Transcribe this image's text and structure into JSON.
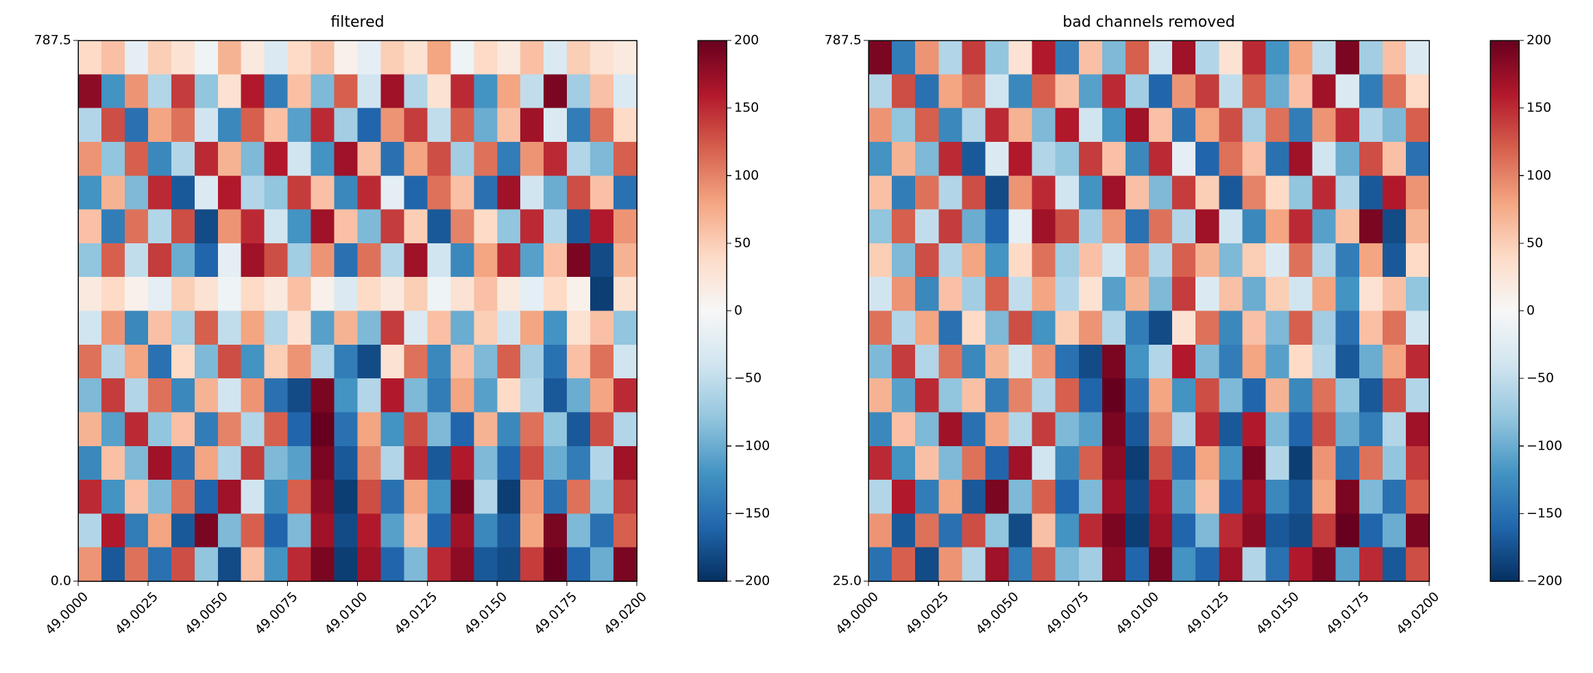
{
  "chart_data": [
    {
      "type": "heatmap",
      "title": "filtered",
      "xlim": [
        49.0,
        49.02
      ],
      "xticks": [
        {
          "value": 49.0,
          "label": "49.0000"
        },
        {
          "value": 49.0025,
          "label": "49.0025"
        },
        {
          "value": 49.005,
          "label": "49.0050"
        },
        {
          "value": 49.0075,
          "label": "49.0075"
        },
        {
          "value": 49.01,
          "label": "49.0100"
        },
        {
          "value": 49.0125,
          "label": "49.0125"
        },
        {
          "value": 49.015,
          "label": "49.0150"
        },
        {
          "value": 49.0175,
          "label": "49.0175"
        },
        {
          "value": 49.02,
          "label": "49.0200"
        }
      ],
      "ylim": [
        0,
        787.5
      ],
      "yticks": [
        {
          "value": 0,
          "label": "0.0"
        },
        787.5
      ],
      "colormap": [
        "#053061",
        "#2166ac",
        "#4393c3",
        "#92c5de",
        "#d1e5f0",
        "#f7f7f7",
        "#fddbc7",
        "#f4a582",
        "#d6604d",
        "#b2182b",
        "#67001f"
      ],
      "clim": [
        -200,
        200
      ],
      "cticks": [
        {
          "value": -200,
          "label": "−200"
        },
        {
          "value": -150,
          "label": "−150"
        },
        {
          "value": -100,
          "label": "−100"
        },
        {
          "value": -50,
          "label": "−50"
        },
        0,
        50,
        100,
        150,
        200
      ],
      "z": [
        [
          40,
          60,
          -20,
          50,
          30,
          -10,
          70,
          20,
          -30,
          40,
          60,
          10,
          -20,
          50,
          30,
          80,
          -10,
          40,
          20,
          60,
          -30,
          50,
          30,
          20
        ],
        [
          180,
          -120,
          90,
          -60,
          140,
          -80,
          30,
          160,
          -140,
          60,
          -90,
          120,
          -40,
          170,
          -60,
          30,
          150,
          -120,
          80,
          -50,
          190,
          -70,
          60,
          -30
        ],
        [
          -60,
          130,
          -150,
          80,
          110,
          -40,
          -130,
          120,
          60,
          -110,
          150,
          -70,
          -160,
          90,
          140,
          -50,
          120,
          -100,
          60,
          170,
          -30,
          -140,
          110,
          40
        ],
        [
          90,
          -80,
          120,
          -130,
          -60,
          150,
          70,
          -90,
          160,
          -40,
          -120,
          170,
          60,
          -150,
          80,
          130,
          -70,
          110,
          -140,
          90,
          150,
          -60,
          -90,
          120
        ],
        [
          -120,
          70,
          -90,
          150,
          -170,
          -30,
          160,
          -60,
          -80,
          140,
          60,
          -130,
          150,
          -20,
          -160,
          110,
          60,
          -150,
          170,
          -40,
          -100,
          130,
          60,
          -150
        ],
        [
          60,
          -140,
          110,
          -60,
          130,
          -180,
          90,
          150,
          -40,
          -120,
          170,
          60,
          -90,
          140,
          50,
          -170,
          100,
          40,
          -80,
          150,
          -60,
          -170,
          160,
          90
        ],
        [
          -80,
          120,
          -50,
          140,
          -100,
          -160,
          -20,
          170,
          130,
          -70,
          90,
          -150,
          110,
          -60,
          170,
          -40,
          -130,
          80,
          150,
          -110,
          60,
          190,
          -180,
          70
        ],
        [
          20,
          40,
          10,
          -20,
          50,
          30,
          -10,
          40,
          20,
          60,
          10,
          -30,
          40,
          20,
          50,
          -10,
          30,
          60,
          20,
          -20,
          40,
          10,
          -190,
          30
        ],
        [
          -40,
          90,
          -130,
          60,
          -70,
          120,
          -50,
          80,
          -60,
          30,
          -110,
          70,
          -90,
          140,
          -30,
          60,
          -100,
          50,
          -40,
          80,
          -120,
          30,
          60,
          -80
        ],
        [
          110,
          -60,
          80,
          -150,
          40,
          -90,
          130,
          -120,
          50,
          90,
          -60,
          -140,
          -180,
          30,
          110,
          -130,
          60,
          -90,
          120,
          -70,
          -150,
          60,
          110,
          -40
        ],
        [
          -90,
          140,
          -60,
          110,
          -130,
          70,
          -40,
          90,
          -150,
          -180,
          190,
          -120,
          -60,
          160,
          -90,
          -140,
          80,
          -110,
          40,
          -60,
          -170,
          -100,
          80,
          150
        ],
        [
          70,
          -110,
          150,
          -80,
          60,
          -140,
          100,
          -60,
          120,
          -160,
          200,
          -150,
          80,
          -120,
          130,
          -90,
          -160,
          70,
          -130,
          110,
          -80,
          -170,
          130,
          -60
        ],
        [
          -130,
          60,
          -90,
          170,
          -150,
          80,
          -60,
          140,
          -90,
          -110,
          190,
          -170,
          100,
          -60,
          150,
          -170,
          160,
          -90,
          -160,
          130,
          -100,
          -140,
          -60,
          170
        ],
        [
          150,
          -120,
          60,
          -90,
          110,
          -160,
          170,
          -40,
          -130,
          120,
          180,
          -190,
          130,
          -150,
          80,
          -120,
          190,
          -60,
          -190,
          90,
          -150,
          110,
          -80,
          140
        ],
        [
          -60,
          160,
          -140,
          80,
          -170,
          190,
          -90,
          120,
          -160,
          -90,
          170,
          -180,
          160,
          -110,
          60,
          -160,
          170,
          -130,
          -170,
          80,
          190,
          -90,
          -150,
          120
        ],
        [
          90,
          -170,
          110,
          -150,
          130,
          -80,
          -180,
          60,
          -120,
          150,
          190,
          -190,
          170,
          -160,
          -90,
          150,
          180,
          -170,
          -180,
          140,
          200,
          -160,
          -100,
          190
        ]
      ]
    },
    {
      "type": "heatmap",
      "title": "bad channels removed",
      "xlim": [
        49.0,
        49.02
      ],
      "xticks": [
        {
          "value": 49.0,
          "label": "49.0000"
        },
        {
          "value": 49.0025,
          "label": "49.0025"
        },
        {
          "value": 49.005,
          "label": "49.0050"
        },
        {
          "value": 49.0075,
          "label": "49.0075"
        },
        {
          "value": 49.01,
          "label": "49.0100"
        },
        {
          "value": 49.0125,
          "label": "49.0125"
        },
        {
          "value": 49.015,
          "label": "49.0150"
        },
        {
          "value": 49.0175,
          "label": "49.0175"
        },
        {
          "value": 49.02,
          "label": "49.0200"
        }
      ],
      "ylim": [
        25,
        787.5
      ],
      "yticks": [
        {
          "value": 25,
          "label": "25.0"
        },
        787.5
      ],
      "colormap": [
        "#053061",
        "#2166ac",
        "#4393c3",
        "#92c5de",
        "#d1e5f0",
        "#f7f7f7",
        "#fddbc7",
        "#f4a582",
        "#d6604d",
        "#b2182b",
        "#67001f"
      ],
      "clim": [
        -200,
        200
      ],
      "cticks": [
        {
          "value": -200,
          "label": "−200"
        },
        {
          "value": -150,
          "label": "−150"
        },
        {
          "value": -100,
          "label": "−100"
        },
        {
          "value": -50,
          "label": "−50"
        },
        0,
        50,
        100,
        150,
        200
      ],
      "z": [
        [
          190,
          -140,
          90,
          -60,
          140,
          -80,
          30,
          160,
          -140,
          60,
          -90,
          120,
          -40,
          170,
          -60,
          30,
          150,
          -120,
          80,
          -50,
          190,
          -70,
          60,
          -30
        ],
        [
          -60,
          130,
          -150,
          80,
          110,
          -40,
          -130,
          120,
          60,
          -110,
          150,
          -70,
          -160,
          90,
          140,
          -50,
          120,
          -100,
          60,
          170,
          -30,
          -140,
          110,
          40
        ],
        [
          90,
          -80,
          120,
          -130,
          -60,
          150,
          70,
          -90,
          160,
          -40,
          -120,
          170,
          60,
          -150,
          80,
          130,
          -70,
          110,
          -140,
          90,
          150,
          -60,
          -90,
          120
        ],
        [
          -120,
          70,
          -90,
          150,
          -170,
          -30,
          160,
          -60,
          -80,
          140,
          60,
          -130,
          150,
          -20,
          -160,
          110,
          60,
          -150,
          170,
          -40,
          -100,
          130,
          60,
          -150
        ],
        [
          60,
          -140,
          110,
          -60,
          130,
          -180,
          90,
          150,
          -40,
          -120,
          170,
          60,
          -90,
          140,
          50,
          -170,
          100,
          40,
          -80,
          150,
          -60,
          -170,
          160,
          90
        ],
        [
          -80,
          120,
          -50,
          140,
          -100,
          -160,
          -20,
          170,
          130,
          -70,
          90,
          -150,
          110,
          -60,
          170,
          -40,
          -130,
          80,
          150,
          -110,
          60,
          190,
          -180,
          70
        ],
        [
          50,
          -90,
          130,
          -60,
          80,
          -120,
          40,
          110,
          -70,
          60,
          -40,
          90,
          -60,
          120,
          70,
          -90,
          50,
          -30,
          110,
          -60,
          -140,
          80,
          -170,
          40
        ],
        [
          -40,
          90,
          -130,
          60,
          -70,
          120,
          -50,
          80,
          -60,
          30,
          -110,
          70,
          -90,
          140,
          -30,
          60,
          -100,
          50,
          -40,
          80,
          -120,
          30,
          60,
          -80
        ],
        [
          110,
          -60,
          80,
          -150,
          40,
          -90,
          130,
          -120,
          50,
          90,
          -60,
          -140,
          -180,
          30,
          110,
          -130,
          60,
          -90,
          120,
          -70,
          -150,
          60,
          110,
          -40
        ],
        [
          -90,
          140,
          -60,
          110,
          -130,
          70,
          -40,
          90,
          -150,
          -180,
          190,
          -120,
          -60,
          160,
          -90,
          -140,
          80,
          -110,
          40,
          -60,
          -170,
          -100,
          80,
          150
        ],
        [
          70,
          -110,
          150,
          -80,
          60,
          -140,
          100,
          -60,
          120,
          -160,
          200,
          -150,
          80,
          -120,
          130,
          -90,
          -160,
          70,
          -130,
          110,
          -80,
          -170,
          130,
          -60
        ],
        [
          -130,
          60,
          -90,
          170,
          -150,
          80,
          -60,
          140,
          -90,
          -110,
          190,
          -170,
          100,
          -60,
          150,
          -170,
          160,
          -90,
          -160,
          130,
          -100,
          -140,
          -60,
          170
        ],
        [
          150,
          -120,
          60,
          -90,
          110,
          -160,
          170,
          -40,
          -130,
          120,
          180,
          -190,
          130,
          -150,
          80,
          -120,
          190,
          -60,
          -190,
          90,
          -150,
          110,
          -80,
          140
        ],
        [
          -60,
          160,
          -140,
          80,
          -170,
          190,
          -90,
          120,
          -160,
          -90,
          170,
          -180,
          160,
          -110,
          60,
          -160,
          170,
          -130,
          -170,
          80,
          190,
          -90,
          -150,
          120
        ],
        [
          90,
          -170,
          110,
          -150,
          130,
          -80,
          -180,
          60,
          -120,
          150,
          190,
          -190,
          170,
          -160,
          -90,
          150,
          180,
          -170,
          -180,
          140,
          200,
          -160,
          -100,
          190
        ],
        [
          -150,
          120,
          -180,
          90,
          -60,
          170,
          -140,
          130,
          -90,
          -70,
          180,
          -160,
          190,
          -120,
          -160,
          170,
          -60,
          -150,
          160,
          190,
          -110,
          150,
          -170,
          130
        ]
      ]
    }
  ]
}
